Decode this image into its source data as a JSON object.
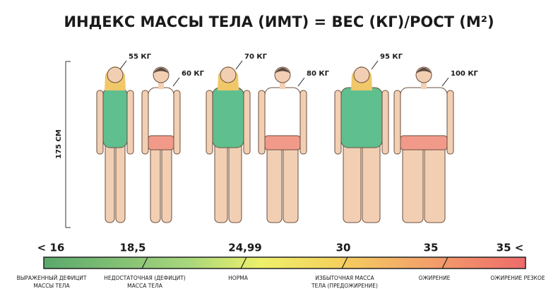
{
  "header": {
    "title": "ИНДЕКС МАССЫ ТЕЛА (ИМТ) = ВЕС (КГ)/РОСТ (М²)"
  },
  "height_label": "175 СМ",
  "figures": [
    {
      "weight": "55 КГ"
    },
    {
      "weight": "60 КГ"
    },
    {
      "weight": "70 КГ"
    },
    {
      "weight": "80 КГ"
    },
    {
      "weight": "95 КГ"
    },
    {
      "weight": "100 КГ"
    }
  ],
  "scale": {
    "marks": [
      "< 16",
      "18,5",
      "24,99",
      "30",
      "35",
      "35 <"
    ],
    "categories": [
      {
        "lines": [
          "ВЫРАЖЕННЫЙ ДЕФИЦИТ",
          "МАССЫ ТЕЛА"
        ]
      },
      {
        "lines": [
          "НЕДОСТАТОЧНАЯ (ДЕФИЦИТ)",
          "МАССА ТЕЛА"
        ]
      },
      {
        "lines": [
          "НОРМА"
        ]
      },
      {
        "lines": [
          "ИЗБЫТОЧНАЯ МАССА",
          "ТЕЛА (ПРЕДОЖИРЕНИЕ)"
        ]
      },
      {
        "lines": [
          "ОЖИРЕНИЕ"
        ]
      },
      {
        "lines": [
          "ОЖИРЕНИЕ РЕЗКОЕ"
        ]
      }
    ]
  }
}
